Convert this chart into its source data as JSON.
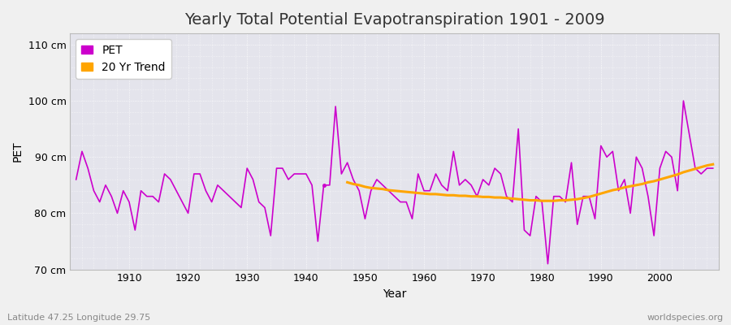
{
  "title": "Yearly Total Potential Evapotranspiration 1901 - 2009",
  "xlabel": "Year",
  "ylabel": "PET",
  "footnote_left": "Latitude 47.25 Longitude 29.75",
  "footnote_right": "worldspecies.org",
  "pet_color": "#CC00CC",
  "trend_color": "#FFA500",
  "background_color": "#F0F0F0",
  "plot_bg_color": "#E4E4EC",
  "grid_color": "#FFFFFF",
  "ylim": [
    70,
    112
  ],
  "yticks": [
    70,
    80,
    90,
    100,
    110
  ],
  "ytick_labels": [
    "70 cm",
    "80 cm",
    "90 cm",
    "100 cm",
    "110 cm"
  ],
  "years": [
    1901,
    1902,
    1903,
    1904,
    1905,
    1906,
    1907,
    1908,
    1909,
    1910,
    1911,
    1912,
    1913,
    1914,
    1915,
    1916,
    1917,
    1918,
    1919,
    1920,
    1921,
    1922,
    1923,
    1924,
    1925,
    1926,
    1927,
    1928,
    1929,
    1930,
    1931,
    1932,
    1933,
    1934,
    1935,
    1936,
    1937,
    1938,
    1939,
    1940,
    1941,
    1942,
    1943,
    1944,
    1945,
    1946,
    1947,
    1948,
    1949,
    1950,
    1951,
    1952,
    1953,
    1954,
    1955,
    1956,
    1957,
    1958,
    1959,
    1960,
    1961,
    1962,
    1963,
    1964,
    1965,
    1966,
    1967,
    1968,
    1969,
    1970,
    1971,
    1972,
    1973,
    1974,
    1975,
    1976,
    1977,
    1978,
    1979,
    1980,
    1981,
    1982,
    1983,
    1984,
    1985,
    1986,
    1987,
    1988,
    1989,
    1990,
    1991,
    1992,
    1993,
    1994,
    1995,
    1996,
    1997,
    1998,
    1999,
    2000,
    2001,
    2002,
    2003,
    2004,
    2005,
    2006,
    2007,
    2008,
    2009
  ],
  "pet_values": [
    86,
    91,
    88,
    84,
    82,
    85,
    83,
    80,
    84,
    82,
    77,
    84,
    83,
    83,
    82,
    87,
    86,
    84,
    82,
    80,
    87,
    87,
    84,
    82,
    85,
    84,
    83,
    82,
    81,
    88,
    86,
    82,
    81,
    76,
    88,
    88,
    86,
    87,
    87,
    87,
    85,
    75,
    85,
    85,
    99,
    87,
    89,
    86,
    84,
    79,
    84,
    86,
    85,
    84,
    83,
    82,
    82,
    79,
    87,
    84,
    84,
    87,
    85,
    84,
    91,
    85,
    86,
    85,
    83,
    86,
    85,
    88,
    87,
    83,
    82,
    95,
    77,
    76,
    83,
    82,
    71,
    83,
    83,
    82,
    89,
    78,
    83,
    83,
    79,
    92,
    90,
    91,
    84,
    86,
    80,
    90,
    88,
    83,
    76,
    88,
    91,
    90,
    84,
    100,
    94,
    88,
    87,
    88,
    88
  ],
  "trend_years": [
    1947,
    1948,
    1949,
    1950,
    1951,
    1952,
    1953,
    1954,
    1955,
    1956,
    1957,
    1958,
    1959,
    1960,
    1961,
    1962,
    1963,
    1964,
    1965,
    1966,
    1967,
    1968,
    1969,
    1970,
    1971,
    1972,
    1973,
    1974,
    1975,
    1976,
    1977,
    1978,
    1979,
    1980,
    1981,
    1982,
    1983,
    1984,
    1985,
    1986,
    1987,
    1988,
    1989,
    1990,
    1991,
    1992,
    1993,
    1994,
    1995,
    1996,
    1997,
    1998,
    1999,
    2000,
    2001,
    2002,
    2003,
    2004,
    2005,
    2006,
    2007,
    2008,
    2009
  ],
  "trend_values": [
    85.5,
    85.2,
    85.0,
    84.7,
    84.5,
    84.4,
    84.3,
    84.1,
    84.0,
    83.9,
    83.8,
    83.7,
    83.6,
    83.5,
    83.4,
    83.4,
    83.3,
    83.2,
    83.2,
    83.1,
    83.1,
    83.0,
    83.0,
    82.9,
    82.9,
    82.8,
    82.8,
    82.7,
    82.6,
    82.5,
    82.4,
    82.3,
    82.3,
    82.2,
    82.2,
    82.2,
    82.3,
    82.3,
    82.4,
    82.5,
    82.7,
    82.9,
    83.2,
    83.5,
    83.8,
    84.1,
    84.3,
    84.6,
    84.8,
    85.0,
    85.2,
    85.5,
    85.7,
    86.0,
    86.3,
    86.6,
    86.9,
    87.3,
    87.6,
    87.9,
    88.2,
    88.5,
    88.7
  ],
  "isolated_point_year": 1943,
  "isolated_point_value": 85,
  "xlim": [
    1900,
    2010
  ],
  "xticks": [
    1910,
    1920,
    1930,
    1940,
    1950,
    1960,
    1970,
    1980,
    1990,
    2000
  ],
  "legend_loc": "upper left",
  "title_fontsize": 14,
  "label_fontsize": 10,
  "tick_fontsize": 9,
  "footnote_fontsize": 8
}
